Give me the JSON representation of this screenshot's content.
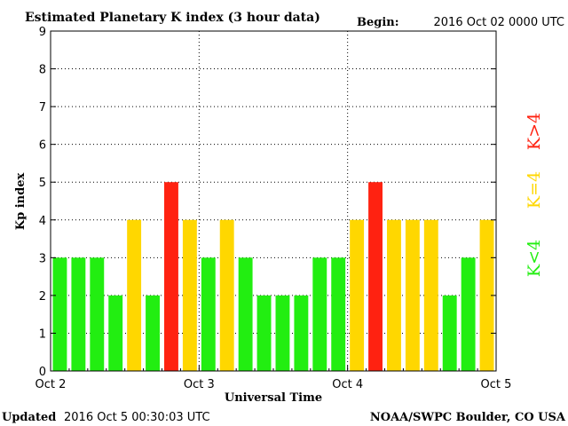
{
  "header": {
    "title": "Estimated Planetary K index (3 hour data)",
    "begin_label": "Begin:",
    "begin_value": "2016 Oct 02 0000 UTC"
  },
  "footer": {
    "updated_label": "Updated",
    "updated_value": "2016 Oct  5 00:30:03 UTC",
    "source": "NOAA/SWPC Boulder, CO USA"
  },
  "legend": {
    "high": "K>4",
    "equal": "K=4",
    "low": "K<4"
  },
  "colors": {
    "low": "#22ee11",
    "equal": "#ffd700",
    "high": "#ff2211"
  },
  "chart_data": {
    "type": "bar",
    "title": "Estimated Planetary K index (3 hour data)",
    "xlabel": "Universal Time",
    "ylabel": "Kp index",
    "ylim": [
      0,
      9
    ],
    "yticks": [
      0,
      1,
      2,
      3,
      4,
      5,
      6,
      7,
      8,
      9
    ],
    "xticks": [
      "Oct 2",
      "Oct 3",
      "Oct 4",
      "Oct 5"
    ],
    "x_interval": "3 hours",
    "grid": "dotted, at each day and each integer Kp",
    "values": [
      3,
      3,
      3,
      2,
      4,
      2,
      5,
      4,
      3,
      4,
      3,
      2,
      2,
      2,
      3,
      3,
      4,
      5,
      4,
      4,
      4,
      2,
      3,
      4
    ],
    "color_rule": "green if Kp<4, yellow if Kp=4, red if Kp>4"
  }
}
